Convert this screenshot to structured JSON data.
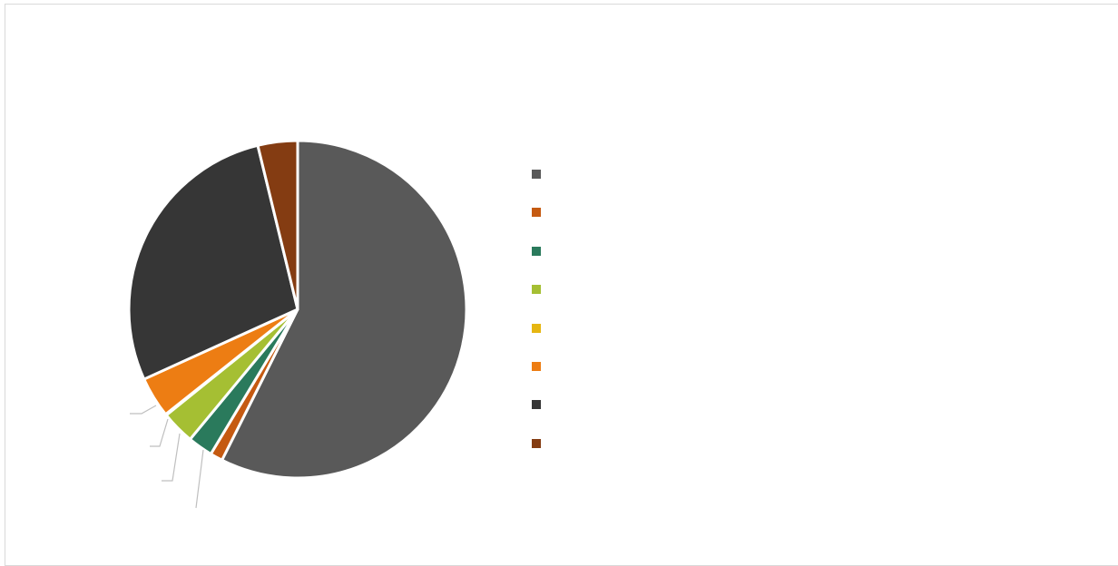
{
  "chart_data": {
    "type": "pie",
    "slices": [
      {
        "value": 0.574,
        "color": "#595959"
      },
      {
        "value": 0.012,
        "color": "#c55a11"
      },
      {
        "value": 0.024,
        "color": "#2a7a5c"
      },
      {
        "value": 0.032,
        "color": "#a5bf33"
      },
      {
        "value": 0.001,
        "color": "#e6b611"
      },
      {
        "value": 0.039,
        "color": "#ed7d13"
      },
      {
        "value": 0.28,
        "color": "#363636"
      },
      {
        "value": 0.038,
        "color": "#843c12"
      }
    ],
    "start_angle_deg": 0,
    "direction": "clockwise",
    "legend_position": "right",
    "grid": false
  }
}
